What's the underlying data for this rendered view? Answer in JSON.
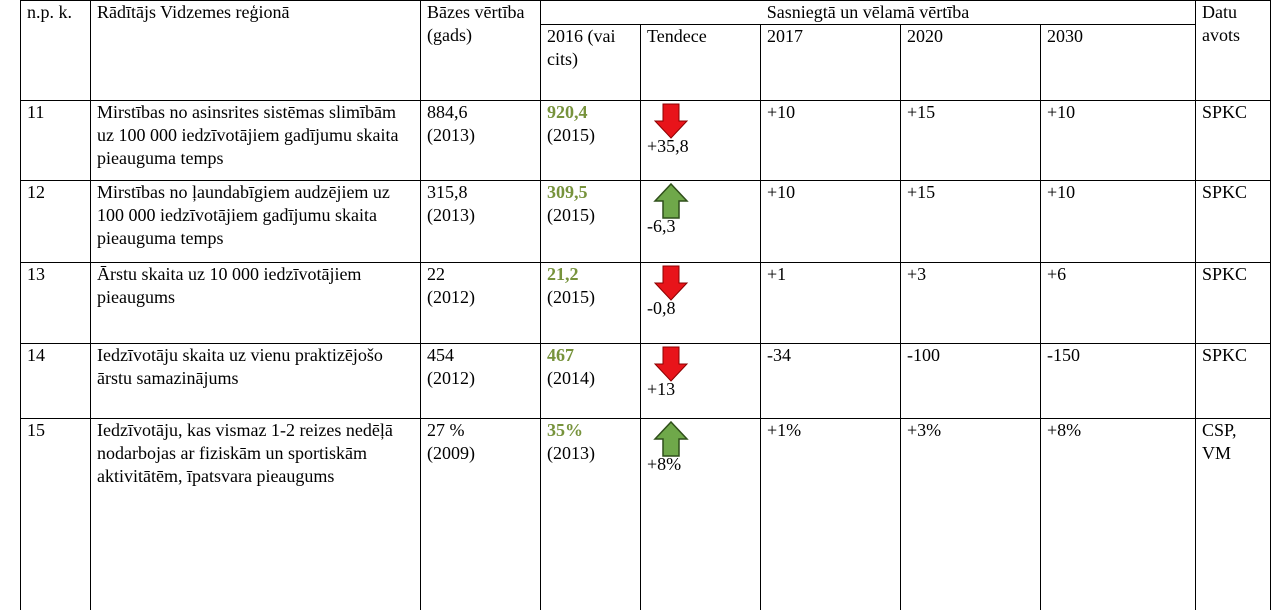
{
  "header": {
    "no": "n.p. k.",
    "indicator": "Rādītājs Vidzemes reģionā",
    "base": "Bāzes vērtība (gads)",
    "group": "Sasniegtā un vēlamā vērtība",
    "source": "Datu avots",
    "sub": [
      "2016 (vai cits)",
      "Tendece",
      "2017",
      "2020",
      "2030"
    ]
  },
  "table": {
    "rows": [
      {
        "no": "11",
        "indicator": "Mirstības no asinsrites sistēmas slimībām uz 100 000 iedzīvotājiem gadījumu skaita pieauguma temps",
        "base": "884,6",
        "base_year": "(2013)",
        "achieved": "920,4",
        "achieved_year": "(2015)",
        "trend": "+35,8",
        "t2017": "+10",
        "t2020": "+15",
        "t2030": "+10",
        "source": "SPKC"
      },
      {
        "no": "12",
        "indicator": "Mirstības no ļaundabīgiem audzējiem uz 100 000 iedzīvotājiem gadījumu skaita pieauguma temps",
        "base": "315,8",
        "base_year": "(2013)",
        "achieved": "309,5",
        "achieved_year": "(2015)",
        "trend": "-6,3",
        "t2017": "+10",
        "t2020": "+15",
        "t2030": "+10",
        "source": "SPKC"
      },
      {
        "no": "13",
        "indicator": "Ārstu skaita uz 10 000 iedzīvotājiem pieaugums",
        "base": "22",
        "base_year": "(2012)",
        "achieved": "21,2",
        "achieved_year": "(2015)",
        "trend": "-0,8",
        "t2017": "+1",
        "t2020": "+3",
        "t2030": "+6",
        "source": "SPKC"
      },
      {
        "no": "14",
        "indicator": "Iedzīvotāju skaita uz vienu praktizējošo ārstu samazinājums",
        "base": "454",
        "base_year": "(2012)",
        "achieved": "467",
        "achieved_year": "(2014)",
        "trend": "+13",
        "t2017": "-34",
        "t2020": "-100",
        "t2030": "-150",
        "source": "SPKC"
      },
      {
        "no": "15",
        "indicator": "Iedzīvotāju, kas vismaz 1-2 reizes nedēļā nodarbojas ar fiziskām un sportiskām aktivitātēm, īpatsvara pieaugums",
        "base": "27 %",
        "base_year": "(2009)",
        "achieved": "35%",
        "achieved_year": "(2013)",
        "trend": "+8%",
        "t2017": "+1%",
        "t2020": "+3%",
        "t2030": "+8%",
        "source": "CSP, VM"
      }
    ]
  }
}
